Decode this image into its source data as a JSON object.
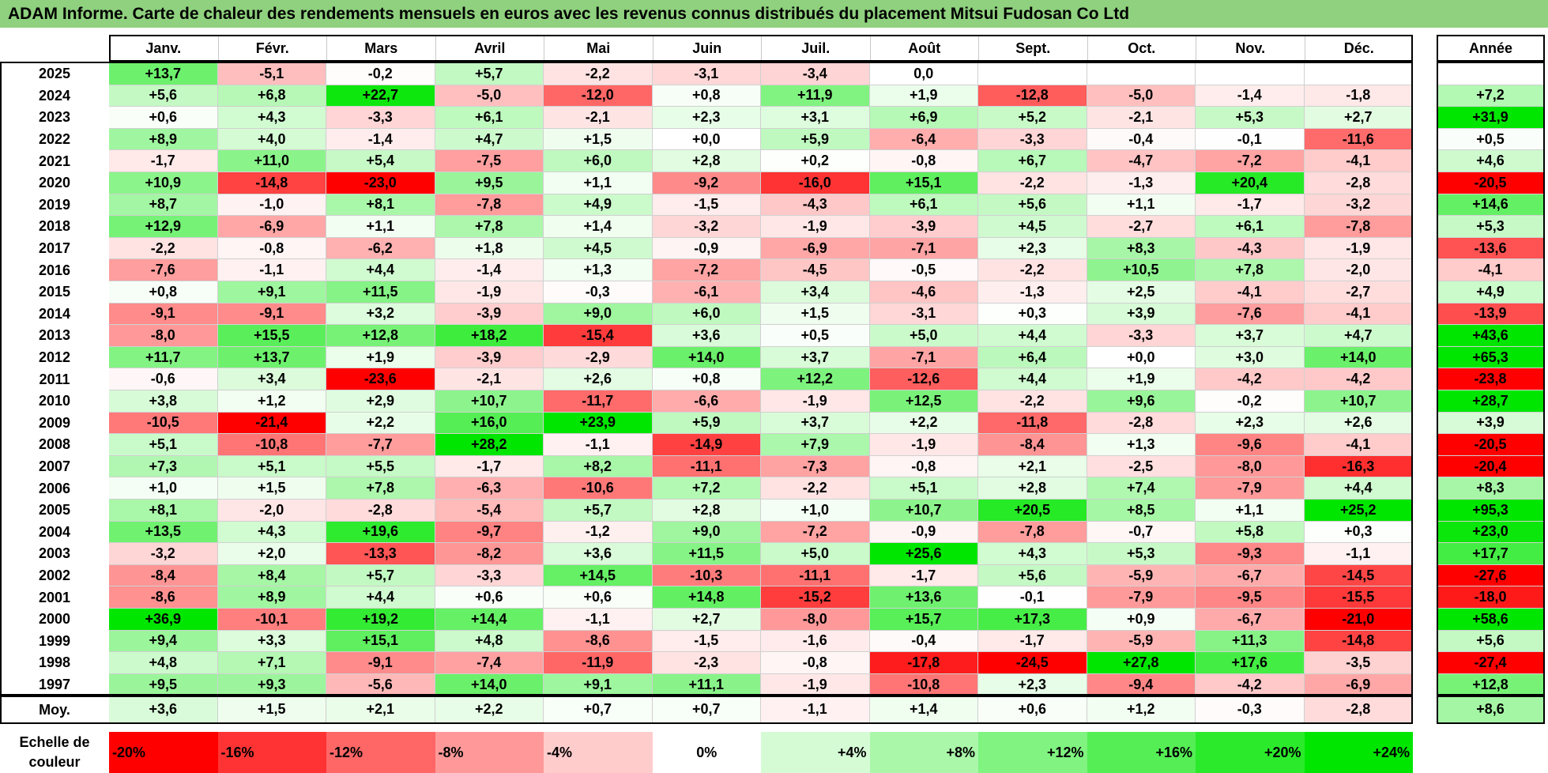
{
  "title": "ADAM Informe. Carte de chaleur des rendements mensuels en euros avec les revenus connus distribués du placement Mitsui Fudosan Co Ltd",
  "chart_data": {
    "type": "heatmap",
    "months": [
      "Janv.",
      "Févr.",
      "Mars",
      "Avril",
      "Mai",
      "Juin",
      "Juil.",
      "Août",
      "Sept.",
      "Oct.",
      "Nov.",
      "Déc."
    ],
    "year_header": "Année",
    "rows": [
      {
        "year": "2025",
        "values": [
          "+13,7",
          "-5,1",
          "-0,2",
          "+5,7",
          "-2,2",
          "-3,1",
          "-3,4",
          "0,0",
          "",
          "",
          "",
          ""
        ],
        "annual": ""
      },
      {
        "year": "2024",
        "values": [
          "+5,6",
          "+6,8",
          "+22,7",
          "-5,0",
          "-12,0",
          "+0,8",
          "+11,9",
          "+1,9",
          "-12,8",
          "-5,0",
          "-1,4",
          "-1,8"
        ],
        "annual": "+7,2"
      },
      {
        "year": "2023",
        "values": [
          "+0,6",
          "+4,3",
          "-3,3",
          "+6,1",
          "-2,1",
          "+2,3",
          "+3,1",
          "+6,9",
          "+5,2",
          "-2,1",
          "+5,3",
          "+2,7"
        ],
        "annual": "+31,9"
      },
      {
        "year": "2022",
        "values": [
          "+8,9",
          "+4,0",
          "-1,4",
          "+4,7",
          "+1,5",
          "+0,0",
          "+5,9",
          "-6,4",
          "-3,3",
          "-0,4",
          "-0,1",
          "-11,6"
        ],
        "annual": "+0,5"
      },
      {
        "year": "2021",
        "values": [
          "-1,7",
          "+11,0",
          "+5,4",
          "-7,5",
          "+6,0",
          "+2,8",
          "+0,2",
          "-0,8",
          "+6,7",
          "-4,7",
          "-7,2",
          "-4,1"
        ],
        "annual": "+4,6"
      },
      {
        "year": "2020",
        "values": [
          "+10,9",
          "-14,8",
          "-23,0",
          "+9,5",
          "+1,1",
          "-9,2",
          "-16,0",
          "+15,1",
          "-2,2",
          "-1,3",
          "+20,4",
          "-2,8"
        ],
        "annual": "-20,5"
      },
      {
        "year": "2019",
        "values": [
          "+8,7",
          "-1,0",
          "+8,1",
          "-7,8",
          "+4,9",
          "-1,5",
          "-4,3",
          "+6,1",
          "+5,6",
          "+1,1",
          "-1,7",
          "-3,2"
        ],
        "annual": "+14,6"
      },
      {
        "year": "2018",
        "values": [
          "+12,9",
          "-6,9",
          "+1,1",
          "+7,8",
          "+1,4",
          "-3,2",
          "-1,9",
          "-3,9",
          "+4,5",
          "-2,7",
          "+6,1",
          "-7,8"
        ],
        "annual": "+5,3"
      },
      {
        "year": "2017",
        "values": [
          "-2,2",
          "-0,8",
          "-6,2",
          "+1,8",
          "+4,5",
          "-0,9",
          "-6,9",
          "-7,1",
          "+2,3",
          "+8,3",
          "-4,3",
          "-1,9"
        ],
        "annual": "-13,6"
      },
      {
        "year": "2016",
        "values": [
          "-7,6",
          "-1,1",
          "+4,4",
          "-1,4",
          "+1,3",
          "-7,2",
          "-4,5",
          "-0,5",
          "-2,2",
          "+10,5",
          "+7,8",
          "-2,0"
        ],
        "annual": "-4,1"
      },
      {
        "year": "2015",
        "values": [
          "+0,8",
          "+9,1",
          "+11,5",
          "-1,9",
          "-0,3",
          "-6,1",
          "+3,4",
          "-4,6",
          "-1,3",
          "+2,5",
          "-4,1",
          "-2,7"
        ],
        "annual": "+4,9"
      },
      {
        "year": "2014",
        "values": [
          "-9,1",
          "-9,1",
          "+3,2",
          "-3,9",
          "+9,0",
          "+6,0",
          "+1,5",
          "-3,1",
          "+0,3",
          "+3,9",
          "-7,6",
          "-4,1"
        ],
        "annual": "-13,9"
      },
      {
        "year": "2013",
        "values": [
          "-8,0",
          "+15,5",
          "+12,8",
          "+18,2",
          "-15,4",
          "+3,6",
          "+0,5",
          "+5,0",
          "+4,4",
          "-3,3",
          "+3,7",
          "+4,7"
        ],
        "annual": "+43,6"
      },
      {
        "year": "2012",
        "values": [
          "+11,7",
          "+13,7",
          "+1,9",
          "-3,9",
          "-2,9",
          "+14,0",
          "+3,7",
          "-7,1",
          "+6,4",
          "+0,0",
          "+3,0",
          "+14,0"
        ],
        "annual": "+65,3"
      },
      {
        "year": "2011",
        "values": [
          "-0,6",
          "+3,4",
          "-23,6",
          "-2,1",
          "+2,6",
          "+0,8",
          "+12,2",
          "-12,6",
          "+4,4",
          "+1,9",
          "-4,2",
          "-4,2"
        ],
        "annual": "-23,8"
      },
      {
        "year": "2010",
        "values": [
          "+3,8",
          "+1,2",
          "+2,9",
          "+10,7",
          "-11,7",
          "-6,6",
          "-1,9",
          "+12,5",
          "-2,2",
          "+9,6",
          "-0,2",
          "+10,7"
        ],
        "annual": "+28,7"
      },
      {
        "year": "2009",
        "values": [
          "-10,5",
          "-21,4",
          "+2,2",
          "+16,0",
          "+23,9",
          "+5,9",
          "+3,7",
          "+2,2",
          "-11,8",
          "-2,8",
          "+2,3",
          "+2,6"
        ],
        "annual": "+3,9"
      },
      {
        "year": "2008",
        "values": [
          "+5,1",
          "-10,8",
          "-7,7",
          "+28,2",
          "-1,1",
          "-14,9",
          "+7,9",
          "-1,9",
          "-8,4",
          "+1,3",
          "-9,6",
          "-4,1"
        ],
        "annual": "-20,5"
      },
      {
        "year": "2007",
        "values": [
          "+7,3",
          "+5,1",
          "+5,5",
          "-1,7",
          "+8,2",
          "-11,1",
          "-7,3",
          "-0,8",
          "+2,1",
          "-2,5",
          "-8,0",
          "-16,3"
        ],
        "annual": "-20,4"
      },
      {
        "year": "2006",
        "values": [
          "+1,0",
          "+1,5",
          "+7,8",
          "-6,3",
          "-10,6",
          "+7,2",
          "-2,2",
          "+5,1",
          "+2,8",
          "+7,4",
          "-7,9",
          "+4,4"
        ],
        "annual": "+8,3"
      },
      {
        "year": "2005",
        "values": [
          "+8,1",
          "-2,0",
          "-2,8",
          "-5,4",
          "+5,7",
          "+2,8",
          "+1,0",
          "+10,7",
          "+20,5",
          "+8,5",
          "+1,1",
          "+25,2"
        ],
        "annual": "+95,3"
      },
      {
        "year": "2004",
        "values": [
          "+13,5",
          "+4,3",
          "+19,6",
          "-9,7",
          "-1,2",
          "+9,0",
          "-7,2",
          "-0,9",
          "-7,8",
          "-0,7",
          "+5,8",
          "+0,3"
        ],
        "annual": "+23,0"
      },
      {
        "year": "2003",
        "values": [
          "-3,2",
          "+2,0",
          "-13,3",
          "-8,2",
          "+3,6",
          "+11,5",
          "+5,0",
          "+25,6",
          "+4,3",
          "+5,3",
          "-9,3",
          "-1,1"
        ],
        "annual": "+17,7"
      },
      {
        "year": "2002",
        "values": [
          "-8,4",
          "+8,4",
          "+5,7",
          "-3,3",
          "+14,5",
          "-10,3",
          "-11,1",
          "-1,7",
          "+5,6",
          "-5,9",
          "-6,7",
          "-14,5"
        ],
        "annual": "-27,6"
      },
      {
        "year": "2001",
        "values": [
          "-8,6",
          "+8,9",
          "+4,4",
          "+0,6",
          "+0,6",
          "+14,8",
          "-15,2",
          "+13,6",
          "-0,1",
          "-7,9",
          "-9,5",
          "-15,5"
        ],
        "annual": "-18,0"
      },
      {
        "year": "2000",
        "values": [
          "+36,9",
          "-10,1",
          "+19,2",
          "+14,4",
          "-1,1",
          "+2,7",
          "-8,0",
          "+15,7",
          "+17,3",
          "+0,9",
          "-6,7",
          "-21,0"
        ],
        "annual": "+58,6"
      },
      {
        "year": "1999",
        "values": [
          "+9,4",
          "+3,3",
          "+15,1",
          "+4,8",
          "-8,6",
          "-1,5",
          "-1,6",
          "-0,4",
          "-1,7",
          "-5,9",
          "+11,3",
          "-14,8"
        ],
        "annual": "+5,6"
      },
      {
        "year": "1998",
        "values": [
          "+4,8",
          "+7,1",
          "-9,1",
          "-7,4",
          "-11,9",
          "-2,3",
          "-0,8",
          "-17,8",
          "-24,5",
          "+27,8",
          "+17,6",
          "-3,5"
        ],
        "annual": "-27,4"
      },
      {
        "year": "1997",
        "values": [
          "+9,5",
          "+9,3",
          "-5,6",
          "+14,0",
          "+9,1",
          "+11,1",
          "-1,9",
          "-10,8",
          "+2,3",
          "-9,4",
          "-4,2",
          "-6,9"
        ],
        "annual": "+12,8"
      }
    ],
    "average": {
      "label": "Moy.",
      "values": [
        "+3,6",
        "+1,5",
        "+2,1",
        "+2,2",
        "+0,7",
        "+0,7",
        "-1,1",
        "+1,4",
        "+0,6",
        "+1,2",
        "-0,3",
        "-2,8"
      ],
      "annual": "+8,6"
    },
    "scale": {
      "label": "Echelle de couleur",
      "steps": [
        {
          "label": "-20%",
          "value": -20
        },
        {
          "label": "-16%",
          "value": -16
        },
        {
          "label": "-12%",
          "value": -12
        },
        {
          "label": "-8%",
          "value": -8
        },
        {
          "label": "-4%",
          "value": -4
        },
        {
          "label": "0%",
          "value": 0
        },
        {
          "label": "+4%",
          "value": 4
        },
        {
          "label": "+8%",
          "value": 8
        },
        {
          "label": "+12%",
          "value": 12
        },
        {
          "label": "+16%",
          "value": 16
        },
        {
          "label": "+20%",
          "value": 20
        },
        {
          "label": "+24%",
          "value": 24
        }
      ]
    }
  }
}
